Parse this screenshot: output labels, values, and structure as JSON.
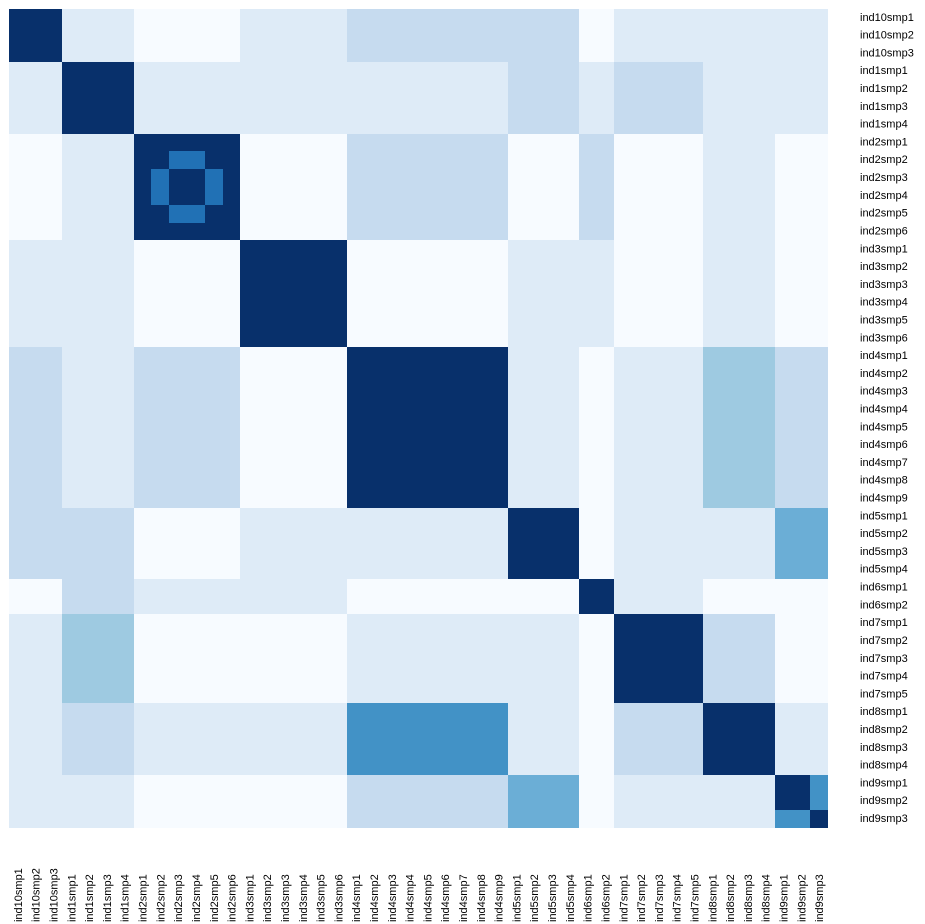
{
  "chart_data": {
    "type": "heatmap",
    "labels": [
      "ind10smp1",
      "ind10smp2",
      "ind10smp3",
      "ind1smp1",
      "ind1smp2",
      "ind1smp3",
      "ind1smp4",
      "ind2smp1",
      "ind2smp2",
      "ind2smp3",
      "ind2smp4",
      "ind2smp5",
      "ind2smp6",
      "ind3smp1",
      "ind3smp2",
      "ind3smp3",
      "ind3smp4",
      "ind3smp5",
      "ind3smp6",
      "ind4smp1",
      "ind4smp2",
      "ind4smp3",
      "ind4smp4",
      "ind4smp5",
      "ind4smp6",
      "ind4smp7",
      "ind4smp8",
      "ind4smp9",
      "ind5smp1",
      "ind5smp2",
      "ind5smp3",
      "ind5smp4",
      "ind6smp1",
      "ind6smp2",
      "ind7smp1",
      "ind7smp2",
      "ind7smp3",
      "ind7smp4",
      "ind7smp5",
      "ind8smp1",
      "ind8smp2",
      "ind8smp3",
      "ind8smp4",
      "ind9smp1",
      "ind9smp2",
      "ind9smp3"
    ],
    "groups": [
      {
        "name": "ind10",
        "start": 0,
        "size": 3
      },
      {
        "name": "ind1",
        "start": 3,
        "size": 4
      },
      {
        "name": "ind2",
        "start": 7,
        "size": 6
      },
      {
        "name": "ind3",
        "start": 13,
        "size": 6
      },
      {
        "name": "ind4",
        "start": 19,
        "size": 9
      },
      {
        "name": "ind5",
        "start": 28,
        "size": 4
      },
      {
        "name": "ind6",
        "start": 32,
        "size": 2
      },
      {
        "name": "ind7",
        "start": 34,
        "size": 5
      },
      {
        "name": "ind8",
        "start": 39,
        "size": 4
      },
      {
        "name": "ind9",
        "start": 43,
        "size": 3
      }
    ],
    "block_levels": [
      [
        9,
        1,
        0,
        1,
        2,
        2,
        0,
        1,
        1,
        1
      ],
      [
        1,
        9,
        1,
        1,
        1,
        2,
        1,
        2,
        1,
        1
      ],
      [
        0,
        1,
        9,
        0,
        2,
        0,
        2,
        0,
        1,
        0
      ],
      [
        1,
        1,
        0,
        9,
        0,
        1,
        1,
        0,
        1,
        0
      ],
      [
        2,
        1,
        2,
        0,
        9,
        1,
        0,
        1,
        3,
        2
      ],
      [
        2,
        2,
        0,
        1,
        1,
        9,
        0,
        1,
        1,
        4
      ],
      [
        0,
        2,
        1,
        1,
        0,
        0,
        9,
        1,
        0,
        0
      ],
      [
        1,
        3,
        0,
        0,
        1,
        1,
        0,
        9,
        2,
        0
      ],
      [
        1,
        2,
        1,
        1,
        5,
        1,
        0,
        2,
        9,
        1
      ],
      [
        1,
        1,
        0,
        0,
        2,
        4,
        0,
        1,
        1,
        9
      ]
    ],
    "within_group_levels": {
      "ind2": [
        [
          9,
          8,
          8,
          8,
          8,
          9
        ],
        [
          8,
          9,
          6,
          6,
          9,
          8
        ],
        [
          8,
          6,
          9,
          9,
          6,
          8
        ],
        [
          8,
          6,
          9,
          9,
          6,
          8
        ],
        [
          8,
          9,
          6,
          6,
          9,
          8
        ],
        [
          9,
          8,
          8,
          8,
          8,
          9
        ]
      ],
      "ind3": [
        [
          9,
          8,
          9,
          9,
          9,
          9
        ],
        [
          8,
          9,
          8,
          8,
          8,
          8
        ],
        [
          9,
          8,
          9,
          9,
          9,
          9
        ],
        [
          9,
          8,
          9,
          9,
          9,
          9
        ],
        [
          9,
          8,
          9,
          9,
          9,
          9
        ],
        [
          9,
          8,
          9,
          9,
          9,
          9
        ]
      ],
      "ind7": [
        [
          9,
          8,
          8,
          8,
          8
        ],
        [
          8,
          9,
          9,
          9,
          9
        ],
        [
          8,
          9,
          9,
          9,
          9
        ],
        [
          8,
          9,
          9,
          9,
          9
        ],
        [
          8,
          9,
          9,
          9,
          9
        ]
      ],
      "ind9": [
        [
          9,
          9,
          5
        ],
        [
          9,
          9,
          5
        ],
        [
          5,
          5,
          9
        ]
      ]
    },
    "color_scale": [
      "#f7fbff",
      "#deebf7",
      "#c6dbef",
      "#9ecae1",
      "#6baed6",
      "#4292c6",
      "#2171b5",
      "#08519c",
      "#08306b",
      "#08306b"
    ],
    "legend": "none"
  }
}
